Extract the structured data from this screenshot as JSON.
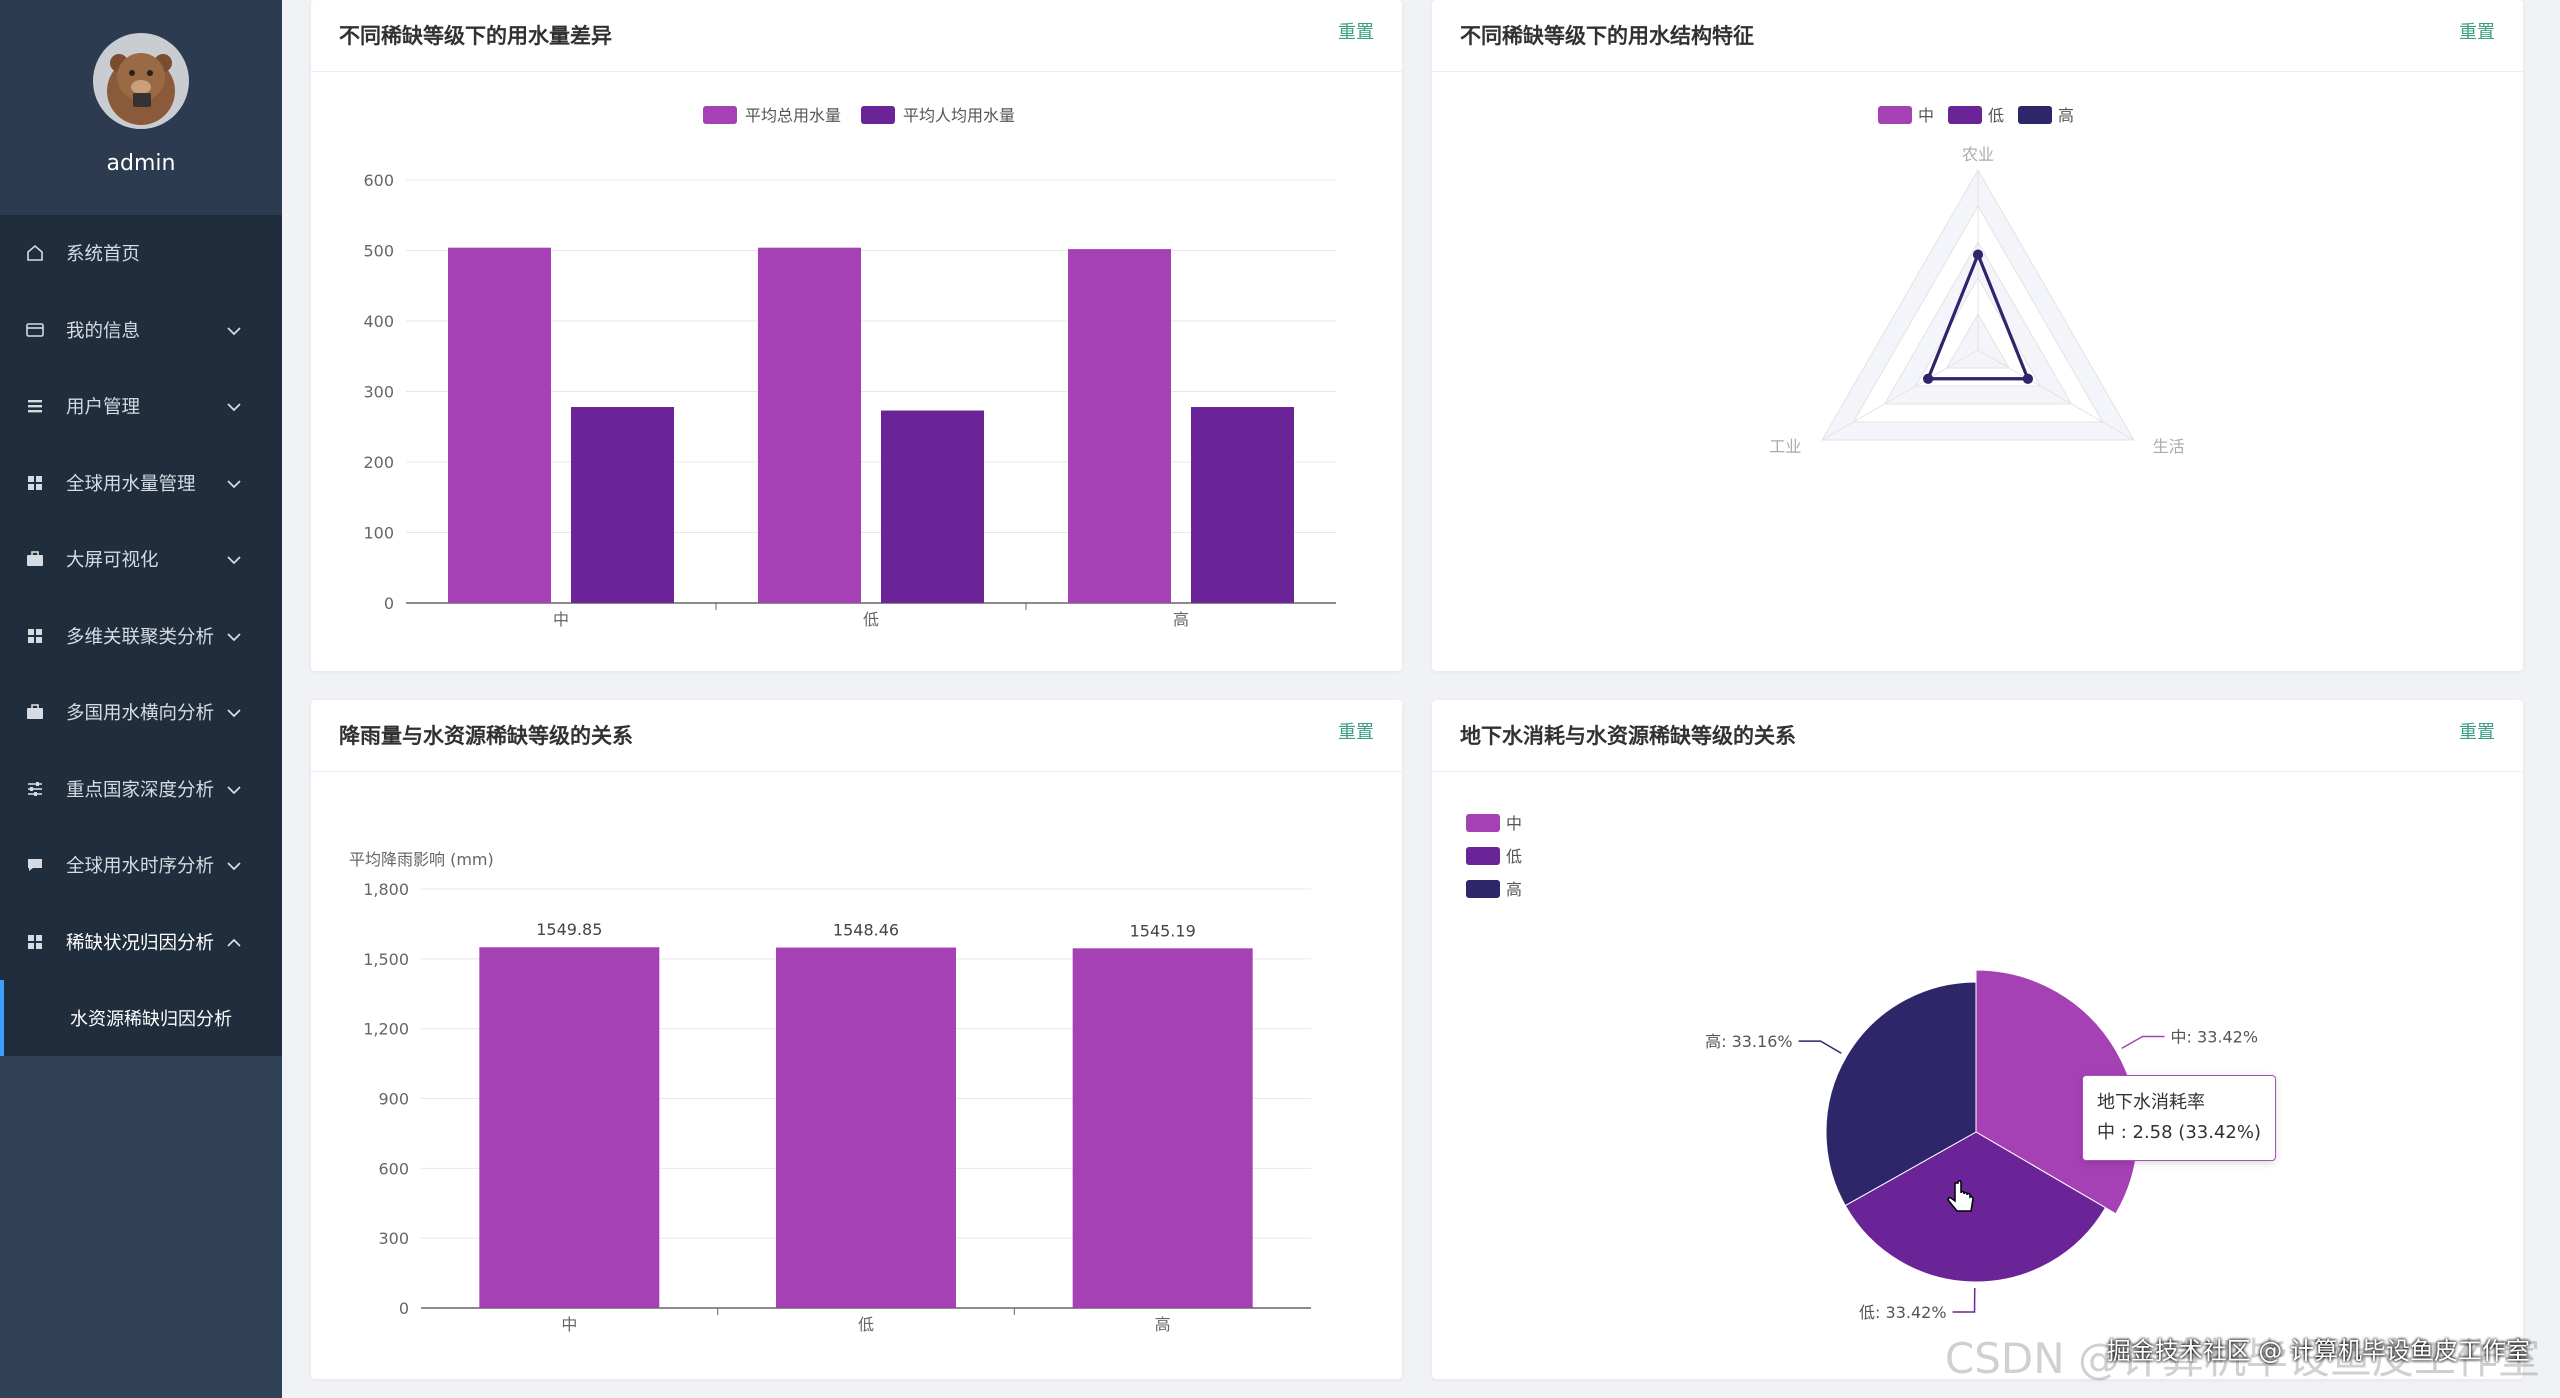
{
  "user": {
    "name": "admin"
  },
  "menu": {
    "items": [
      {
        "label": "系统首页",
        "icon": "home-icon",
        "has_arrow": false
      },
      {
        "label": "我的信息",
        "icon": "card-icon",
        "has_arrow": true
      },
      {
        "label": "用户管理",
        "icon": "list-icon",
        "has_arrow": true
      },
      {
        "label": "全球用水量管理",
        "icon": "grid-icon",
        "has_arrow": true
      },
      {
        "label": "大屏可视化",
        "icon": "briefcase-icon",
        "has_arrow": true
      },
      {
        "label": "多维关联聚类分析",
        "icon": "grid-icon",
        "has_arrow": true
      },
      {
        "label": "多国用水横向分析",
        "icon": "briefcase-icon",
        "has_arrow": true
      },
      {
        "label": "重点国家深度分析",
        "icon": "sliders-icon",
        "has_arrow": true
      },
      {
        "label": "全球用水时序分析",
        "icon": "chat-icon",
        "has_arrow": true
      },
      {
        "label": "稀缺状况归因分析",
        "icon": "grid-icon",
        "has_arrow": true,
        "open": true
      }
    ],
    "sub_item": "水资源稀缺归因分析"
  },
  "colors": {
    "c1": "#a641b5",
    "c2": "#6a2497",
    "c3": "#2d2668",
    "accent": "#3c9e83"
  },
  "reset_label": "重置",
  "chart_data": [
    {
      "type": "bar",
      "title": "不同稀缺等级下的用水量差异",
      "categories": [
        "中",
        "低",
        "高"
      ],
      "series": [
        {
          "name": "平均总用水量",
          "values": [
            504,
            504,
            502
          ]
        },
        {
          "name": "平均人均用水量",
          "values": [
            278,
            273,
            278
          ]
        }
      ],
      "yticks": [
        "0",
        "100",
        "200",
        "300",
        "400",
        "500",
        "600"
      ],
      "ylim": [
        0,
        600
      ],
      "legend": "top-center"
    },
    {
      "type": "radar",
      "title": "不同稀缺等级下的用水结构特征",
      "indicators": [
        "农业",
        "生活",
        "工业"
      ],
      "series": [
        {
          "name": "中",
          "values": [
            0.53,
            0.32,
            0.32
          ]
        },
        {
          "name": "低",
          "values": [
            0.53,
            0.32,
            0.32
          ]
        },
        {
          "name": "高",
          "values": [
            0.53,
            0.32,
            0.32
          ]
        }
      ],
      "legend": "top-center"
    },
    {
      "type": "bar",
      "title": "降雨量与水资源稀缺等级的关系",
      "ylabel": "平均降雨影响 (mm)",
      "categories": [
        "中",
        "低",
        "高"
      ],
      "values": [
        1549.85,
        1548.46,
        1545.19
      ],
      "data_labels": [
        "1549.85",
        "1548.46",
        "1545.19"
      ],
      "yticks": [
        "0",
        "300",
        "600",
        "900",
        "1,200",
        "1,500",
        "1,800"
      ],
      "ylim": [
        0,
        1800
      ]
    },
    {
      "type": "pie",
      "title": "地下水消耗与水资源稀缺等级的关系",
      "slices": [
        {
          "name": "中",
          "value": 2.58,
          "label": "中: 33.42%"
        },
        {
          "name": "低",
          "value": 2.58,
          "label": "低: 33.42%"
        },
        {
          "name": "高",
          "value": 2.56,
          "label": "高: 33.16%"
        }
      ],
      "legend": "top-left",
      "tooltip": {
        "title": "地下水消耗率",
        "text": "中 : 2.58 (33.42%)"
      }
    }
  ],
  "watermark": "CSDN @计算机毕设鱼皮工作室",
  "watermark2": "掘金技术社区 @ 计算机毕设鱼皮工作室"
}
